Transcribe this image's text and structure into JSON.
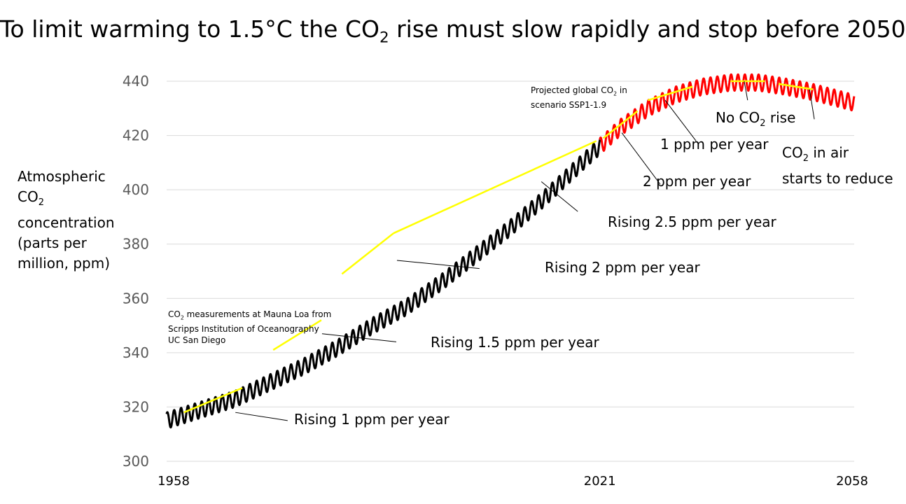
{
  "title": {
    "pre": "To limit warming to 1.5°C the CO",
    "sub": "2",
    "post": " rise must slow rapidly and stop before 2050"
  },
  "y_axis_label": {
    "line1": "Atmospheric",
    "line2": "CO",
    "line2_sub": "2",
    "line3": "concentration",
    "line4": "(parts per",
    "line5": "million, ppm)"
  },
  "note_measurements": {
    "l1_pre": "CO",
    "l1_sub": "2",
    "l1_post": " measurements at Mauna Loa from",
    "l2": "Scripps Institution of Oceanography",
    "l3": "UC San Diego"
  },
  "note_projection": {
    "l1_pre": "Projected global CO",
    "l1_sub": "2",
    "l1_post": " in",
    "l2": "scenario SSP1-1.9"
  },
  "annotations": {
    "rise1": "Rising 1 ppm per year",
    "rise15": "Rising 1.5 ppm per year",
    "rise2": "Rising 2 ppm per year",
    "rise25": "Rising 2.5 ppm per year",
    "proj2": "2 ppm per year",
    "proj1": "1 ppm per year",
    "norise_pre": "No CO",
    "norise_sub": "2",
    "norise_post": " rise",
    "reduce_pre": "CO",
    "reduce_sub": "2",
    "reduce_post": " in air",
    "reduce_l2": "starts to reduce"
  },
  "colors": {
    "measured": "#000000",
    "projected": "#ff0000",
    "trend": "#ffff00",
    "grid": "#d9d9d9",
    "axis_text": "#595959"
  },
  "chart_data": {
    "type": "line",
    "ylim": [
      300,
      440
    ],
    "xlim": [
      1958,
      2058
    ],
    "y_ticks": [
      300,
      320,
      340,
      360,
      380,
      400,
      420,
      440
    ],
    "x_ticks": [
      1958,
      2021,
      2058
    ],
    "grid": true,
    "seasonal_amplitude_ppm": 3,
    "series": [
      {
        "style": "measured",
        "x": [
          1958,
          1963,
          1968,
          1973,
          1978,
          1983,
          1988,
          1993,
          1998,
          2003,
          2008,
          2013,
          2018,
          2021
        ],
        "values": [
          315,
          319,
          323,
          329,
          335,
          342,
          350,
          357,
          366,
          376,
          386,
          397,
          409,
          416
        ]
      },
      {
        "style": "projected",
        "x": [
          2021,
          2024,
          2028,
          2032,
          2036,
          2040,
          2044,
          2048,
          2052,
          2055,
          2058
        ],
        "values": [
          416,
          423,
          430,
          435,
          438,
          439.5,
          439.5,
          438,
          436,
          434,
          432
        ]
      }
    ],
    "trend_segments": [
      {
        "x": [
          1960.5,
          1969
        ],
        "values": [
          318,
          327
        ]
      },
      {
        "x": [
          1973.5,
          1980.5
        ],
        "values": [
          341,
          352
        ]
      },
      {
        "x": [
          1983.5,
          1991
        ],
        "values": [
          369,
          384
        ]
      },
      {
        "x": [
          1991,
          2020.5
        ],
        "values": [
          384,
          418
        ]
      },
      {
        "x": [
          2021.5,
          2026.5
        ],
        "values": [
          419,
          429
        ]
      },
      {
        "x": [
          2028,
          2034.5
        ],
        "values": [
          433,
          438
        ]
      },
      {
        "x": [
          2040,
          2045
        ],
        "values": [
          440,
          440
        ]
      },
      {
        "x": [
          2047,
          2052
        ],
        "values": [
          439,
          437
        ]
      }
    ],
    "leaders": [
      {
        "from": [
          1968,
          318
        ],
        "to": [
          1975.6,
          315
        ]
      },
      {
        "from": [
          1980.6,
          347
        ],
        "to": [
          1991.4,
          344
        ]
      },
      {
        "from": [
          1991.5,
          374
        ],
        "to": [
          2003.5,
          371
        ]
      },
      {
        "from": [
          2012.5,
          403
        ],
        "to": [
          2017.8,
          392
        ]
      },
      {
        "from": [
          2024.2,
          421
        ],
        "to": [
          2029.8,
          402
        ]
      },
      {
        "from": [
          2030.5,
          433
        ],
        "to": [
          2035,
          418
        ]
      },
      {
        "from": [
          2042,
          440
        ],
        "to": [
          2042.5,
          433
        ]
      },
      {
        "from": [
          2051.5,
          437
        ],
        "to": [
          2052.2,
          426
        ]
      }
    ]
  }
}
